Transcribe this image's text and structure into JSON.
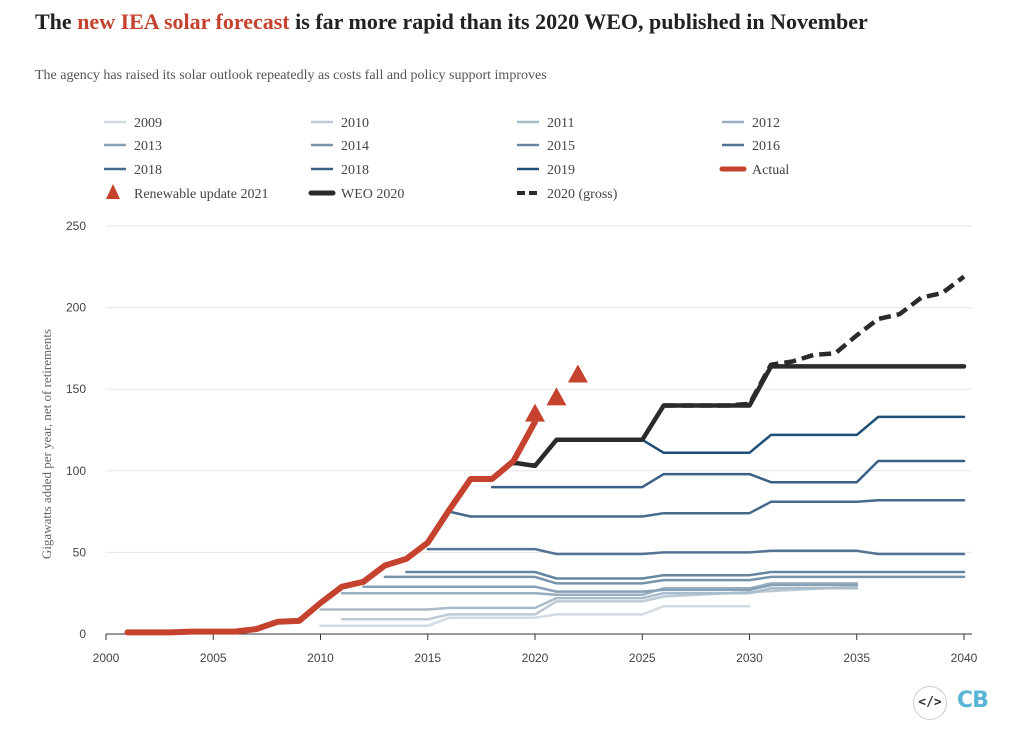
{
  "header": {
    "title_pre": "The ",
    "title_highlight": "new IEA solar forecast",
    "title_post": " is far more rapid than its 2020 WEO, published in November",
    "subtitle": "The agency has raised its solar outlook repeatedly as costs fall and policy support improves"
  },
  "colors": {
    "actual": "#c5432e",
    "weo": "#2b2b2b",
    "grid": "#e6e6e6",
    "highlight_text": "#c5432e"
  },
  "logo": {
    "code_icon": "</>",
    "brand": "CB"
  },
  "chart_data": {
    "type": "line",
    "title": "",
    "xlabel": "",
    "ylabel": "Gigawatts added per year, net of retirements",
    "xlim": [
      2000,
      2040
    ],
    "ylim": [
      0,
      250
    ],
    "xticks": [
      2000,
      2005,
      2010,
      2015,
      2020,
      2025,
      2030,
      2035,
      2040
    ],
    "yticks": [
      0,
      50,
      100,
      150,
      200,
      250
    ],
    "grid": true,
    "legend_position": "top",
    "series": [
      {
        "name": "2009",
        "color": "#d3dbe3",
        "width": 2.5,
        "style": "solid",
        "points": [
          [
            2010,
            5
          ],
          [
            2015,
            5
          ],
          [
            2016,
            10
          ],
          [
            2020,
            10
          ],
          [
            2021,
            12
          ],
          [
            2025,
            12
          ],
          [
            2026,
            17
          ],
          [
            2030,
            17
          ]
        ]
      },
      {
        "name": "2010",
        "color": "#bccad6",
        "width": 2.5,
        "style": "solid",
        "points": [
          [
            2011,
            9
          ],
          [
            2015,
            9
          ],
          [
            2016,
            12
          ],
          [
            2020,
            12
          ],
          [
            2021,
            20
          ],
          [
            2025,
            20
          ],
          [
            2026,
            23
          ],
          [
            2035,
            29
          ]
        ]
      },
      {
        "name": "2011",
        "color": "#a9bccb",
        "width": 2.5,
        "style": "solid",
        "points": [
          [
            2010,
            15
          ],
          [
            2015,
            15
          ],
          [
            2016,
            16
          ],
          [
            2020,
            16
          ],
          [
            2021,
            22
          ],
          [
            2025,
            22
          ],
          [
            2026,
            25
          ],
          [
            2030,
            25
          ],
          [
            2031,
            28
          ],
          [
            2035,
            28
          ]
        ]
      },
      {
        "name": "2012",
        "color": "#98afc1",
        "width": 2.5,
        "style": "solid",
        "points": [
          [
            2011,
            25
          ],
          [
            2015,
            25
          ],
          [
            2016,
            25
          ],
          [
            2020,
            25
          ],
          [
            2021,
            24
          ],
          [
            2025,
            24
          ],
          [
            2026,
            28
          ],
          [
            2030,
            28
          ],
          [
            2031,
            31
          ],
          [
            2035,
            31
          ]
        ]
      },
      {
        "name": "2013",
        "color": "#87a1b7",
        "width": 2.5,
        "style": "solid",
        "points": [
          [
            2012,
            29
          ],
          [
            2015,
            29
          ],
          [
            2016,
            29
          ],
          [
            2020,
            29
          ],
          [
            2021,
            26
          ],
          [
            2025,
            26
          ],
          [
            2026,
            27
          ],
          [
            2030,
            27
          ],
          [
            2031,
            30
          ],
          [
            2035,
            30
          ]
        ]
      },
      {
        "name": "2014",
        "color": "#7693ac",
        "width": 2.5,
        "style": "solid",
        "points": [
          [
            2013,
            35
          ],
          [
            2015,
            35
          ],
          [
            2016,
            35
          ],
          [
            2020,
            35
          ],
          [
            2021,
            31
          ],
          [
            2025,
            31
          ],
          [
            2026,
            33
          ],
          [
            2030,
            33
          ],
          [
            2031,
            35
          ],
          [
            2040,
            35
          ]
        ]
      },
      {
        "name": "2015",
        "color": "#6685a1",
        "width": 2.5,
        "style": "solid",
        "points": [
          [
            2014,
            38
          ],
          [
            2015,
            38
          ],
          [
            2016,
            38
          ],
          [
            2020,
            38
          ],
          [
            2021,
            34
          ],
          [
            2025,
            34
          ],
          [
            2026,
            36
          ],
          [
            2030,
            36
          ],
          [
            2031,
            38
          ],
          [
            2040,
            38
          ]
        ]
      },
      {
        "name": "2016",
        "color": "#537494",
        "width": 2.5,
        "style": "solid",
        "points": [
          [
            2015,
            52
          ],
          [
            2020,
            52
          ],
          [
            2021,
            49
          ],
          [
            2025,
            49
          ],
          [
            2026,
            50
          ],
          [
            2030,
            50
          ],
          [
            2031,
            51
          ],
          [
            2035,
            51
          ],
          [
            2036,
            49
          ],
          [
            2040,
            49
          ]
        ]
      },
      {
        "name": "2018",
        "color": "#466a8b",
        "width": 2.5,
        "style": "solid",
        "points": [
          [
            2016,
            75
          ],
          [
            2017,
            72
          ],
          [
            2020,
            72
          ],
          [
            2025,
            72
          ],
          [
            2026,
            74
          ],
          [
            2030,
            74
          ],
          [
            2031,
            81
          ],
          [
            2035,
            81
          ],
          [
            2036,
            82
          ],
          [
            2040,
            82
          ]
        ]
      },
      {
        "name": "2018",
        "color": "#3a6085",
        "width": 2.5,
        "style": "solid",
        "points": [
          [
            2018,
            90
          ],
          [
            2020,
            90
          ],
          [
            2025,
            90
          ],
          [
            2026,
            98
          ],
          [
            2030,
            98
          ],
          [
            2031,
            93
          ],
          [
            2035,
            93
          ],
          [
            2036,
            106
          ],
          [
            2040,
            106
          ]
        ]
      },
      {
        "name": "2019",
        "color": "#1d4f79",
        "width": 2.5,
        "style": "solid",
        "points": [
          [
            2019,
            104
          ],
          [
            2020,
            104
          ],
          [
            2021,
            119
          ],
          [
            2025,
            119
          ],
          [
            2026,
            111
          ],
          [
            2030,
            111
          ],
          [
            2031,
            122
          ],
          [
            2035,
            122
          ],
          [
            2036,
            133
          ],
          [
            2040,
            133
          ]
        ]
      },
      {
        "name": "2020 (gross)",
        "color": "#2b2b2b",
        "width": 4.5,
        "style": "dashed",
        "points": [
          [
            2026,
            140
          ],
          [
            2029,
            140
          ],
          [
            2030,
            141
          ],
          [
            2031,
            165
          ],
          [
            2032,
            167
          ],
          [
            2033,
            171
          ],
          [
            2034,
            172
          ],
          [
            2035,
            183
          ],
          [
            2036,
            193
          ],
          [
            2037,
            196
          ],
          [
            2038,
            206
          ],
          [
            2039,
            209
          ],
          [
            2040,
            219
          ]
        ]
      },
      {
        "name": "WEO 2020",
        "color": "#2b2b2b",
        "width": 4.5,
        "style": "solid",
        "points": [
          [
            2019,
            105
          ],
          [
            2020,
            103
          ],
          [
            2021,
            119
          ],
          [
            2025,
            119
          ],
          [
            2026,
            140
          ],
          [
            2030,
            140
          ],
          [
            2031,
            164
          ],
          [
            2040,
            164
          ]
        ]
      },
      {
        "name": "Actual",
        "color": "#c5432e",
        "width": 6,
        "style": "solid",
        "points": [
          [
            2001,
            1
          ],
          [
            2003,
            1
          ],
          [
            2004,
            1.5
          ],
          [
            2005,
            1.5
          ],
          [
            2006,
            1.5
          ],
          [
            2007,
            3
          ],
          [
            2008,
            7.5
          ],
          [
            2009,
            8
          ],
          [
            2010,
            19
          ],
          [
            2011,
            29
          ],
          [
            2012,
            32
          ],
          [
            2013,
            42
          ],
          [
            2014,
            46
          ],
          [
            2015,
            56
          ],
          [
            2016,
            76
          ],
          [
            2017,
            95
          ],
          [
            2018,
            95
          ],
          [
            2019,
            106
          ],
          [
            2020,
            130
          ]
        ]
      },
      {
        "name": "Renewable update 2021",
        "color": "#c5432e",
        "type": "markers",
        "marker": "triangle",
        "points": [
          [
            2020,
            135
          ],
          [
            2021,
            145
          ],
          [
            2022,
            159
          ]
        ]
      }
    ],
    "legend": [
      {
        "label": "2009",
        "color": "#d3dbe3",
        "kind": "line"
      },
      {
        "label": "2010",
        "color": "#bccad6",
        "kind": "line"
      },
      {
        "label": "2011",
        "color": "#a9bccb",
        "kind": "line"
      },
      {
        "label": "2012",
        "color": "#98afc1",
        "kind": "line"
      },
      {
        "label": "2013",
        "color": "#87a1b7",
        "kind": "line"
      },
      {
        "label": "2014",
        "color": "#7693ac",
        "kind": "line"
      },
      {
        "label": "2015",
        "color": "#6685a1",
        "kind": "line"
      },
      {
        "label": "2016",
        "color": "#537494",
        "kind": "line"
      },
      {
        "label": "2018",
        "color": "#466a8b",
        "kind": "line"
      },
      {
        "label": "2018",
        "color": "#3a6085",
        "kind": "line"
      },
      {
        "label": "2019",
        "color": "#1d4f79",
        "kind": "line"
      },
      {
        "label": "Actual",
        "color": "#c5432e",
        "kind": "thick"
      },
      {
        "label": "Renewable update 2021",
        "color": "#c5432e",
        "kind": "triangle"
      },
      {
        "label": "WEO 2020",
        "color": "#2b2b2b",
        "kind": "thick"
      },
      {
        "label": "2020 (gross)",
        "color": "#2b2b2b",
        "kind": "dashed"
      }
    ]
  }
}
